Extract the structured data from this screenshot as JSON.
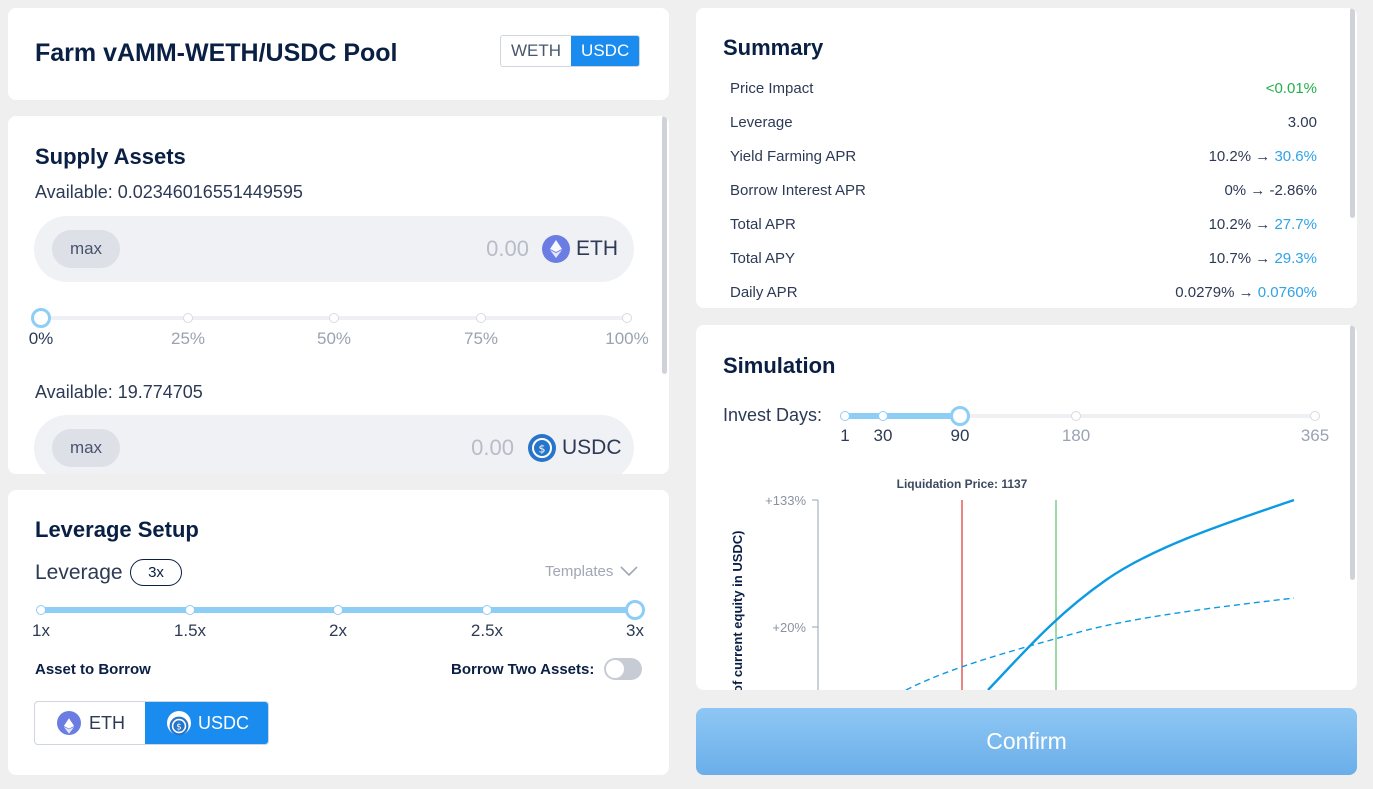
{
  "header": {
    "title": "Farm vAMM-WETH/USDC Pool",
    "toggle": [
      "WETH",
      "USDC"
    ]
  },
  "supply": {
    "title": "Supply Assets",
    "eth": {
      "available_label": "Available: 0.02346016551449595",
      "max_label": "max",
      "amount": "0.00",
      "token": "ETH"
    },
    "percent_ticks": [
      "0%",
      "25%",
      "50%",
      "75%",
      "100%"
    ],
    "supply_fraction": 0,
    "usdc": {
      "available_label": "Available: 19.774705",
      "max_label": "max",
      "amount": "0.00",
      "token": "USDC"
    }
  },
  "leverage": {
    "title": "Leverage Setup",
    "label": "Leverage",
    "value_badge": "3x",
    "templates_label": "Templates",
    "ticks": [
      "1x",
      "1.5x",
      "2x",
      "2.5x",
      "3x"
    ],
    "selected_fraction": 1.0,
    "asset_to_borrow_label": "Asset to Borrow",
    "borrow_two_label": "Borrow Two Assets:",
    "borrow_two_enabled": false,
    "assets": [
      "ETH",
      "USDC"
    ],
    "selected_asset": "USDC"
  },
  "summary": {
    "title": "Summary",
    "rows": [
      {
        "label": "Price Impact",
        "value": "<0.01%",
        "from": "",
        "to": ""
      },
      {
        "label": "Leverage",
        "value": "3.00",
        "from": "",
        "to": ""
      },
      {
        "label": "Yield Farming APR",
        "value": "",
        "from": "10.2% → ",
        "to": "30.6%"
      },
      {
        "label": "Borrow Interest APR",
        "value": "0% → -2.86%",
        "from": "",
        "to": ""
      },
      {
        "label": "Total APR",
        "value": "",
        "from": "10.2% → ",
        "to": "27.7%"
      },
      {
        "label": "Total APY",
        "value": "",
        "from": "10.7% → ",
        "to": "29.3%"
      },
      {
        "label": "Daily APR",
        "value": "",
        "from": "0.0279% → ",
        "to": "0.0760%"
      }
    ]
  },
  "simulation": {
    "title": "Simulation",
    "invest_days_label": "Invest Days",
    "day_ticks": [
      "1",
      "30",
      "90",
      "180",
      "365"
    ],
    "selected_days": 90,
    "chart_data": {
      "type": "line",
      "annotation": "Liquidation Price: 1137",
      "ylabel": "of current equity in USDC)",
      "y_tick_labels": [
        "+133%",
        "+20%"
      ],
      "series": [
        {
          "style": "solid",
          "color": "#0b9be3"
        },
        {
          "style": "dashed",
          "color": "#0b9be3"
        }
      ],
      "liquidation_line_color": "#e0342b",
      "current_price_line_color": "#5cc36a"
    }
  },
  "confirm_label": "Confirm"
}
